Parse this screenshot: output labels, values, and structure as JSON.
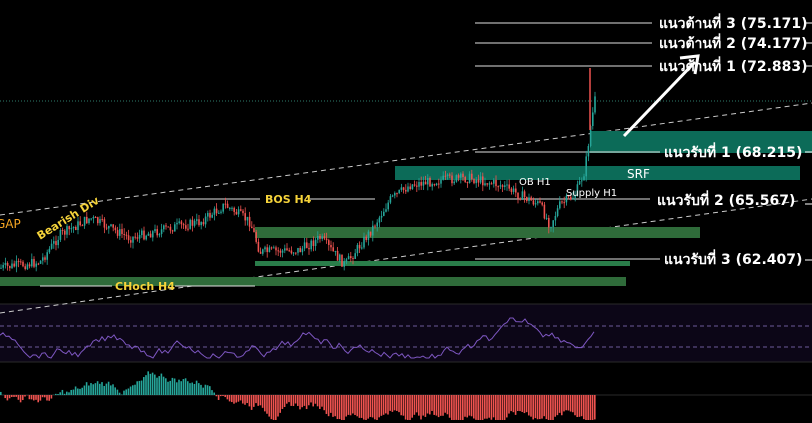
{
  "chart_data": {
    "type": "candlestick",
    "resistance": [
      {
        "label": "แนวต้านที่ 3 (75.171)",
        "value": 75.171
      },
      {
        "label": "แนวต้านที่ 2 (74.177)",
        "value": 74.177
      },
      {
        "label": "แนวต้านที่ 1 (72.883)",
        "value": 72.883
      }
    ],
    "support": [
      {
        "label": "แนวรับที่ 1 (68.215)",
        "value": 68.215
      },
      {
        "label": "แนวรับที่ 2 (65.567)",
        "value": 65.567
      },
      {
        "label": "แนวรับที่ 3 (62.407)",
        "value": 62.407
      }
    ],
    "annotations": {
      "srf": "SRF",
      "ob_h1": "OB H1",
      "supply_h1": "Supply H1",
      "bos_h4": "BOS H4",
      "choch_h4": "CHoch H4",
      "bearish_div": "Bearish Div",
      "gap": "GAP"
    },
    "colors": {
      "background": "#000000",
      "zone_green": "#2f6b3a",
      "zone_teal": "#0c6b58",
      "candle_up": "#26a69a",
      "candle_down": "#ef5350",
      "rsi_line": "#7e57c2",
      "label_yellow": "#f5d33a"
    }
  }
}
